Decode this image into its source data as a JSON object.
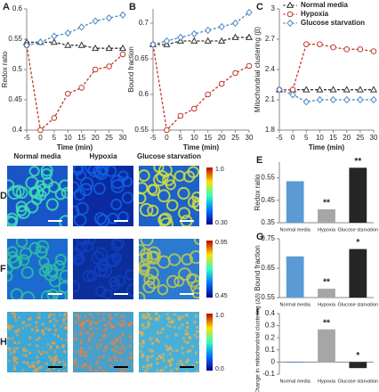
{
  "chart_data": [
    {
      "type": "line",
      "panel": "A",
      "y_label": "Redox ratio",
      "x_label": "Time (min)",
      "x": [
        -5,
        0,
        5,
        10,
        15,
        20,
        25,
        30
      ],
      "xlim": [
        -5,
        30
      ],
      "xticks": [
        -5,
        0,
        5,
        10,
        15,
        20,
        25,
        30
      ],
      "ylim": [
        0.4,
        0.6
      ],
      "yticks": [
        0.4,
        0.45,
        0.5,
        0.55,
        0.6
      ],
      "series": [
        {
          "name": "Normal media",
          "color": "#333333",
          "marker": "triangle",
          "values": [
            0.545,
            0.545,
            0.545,
            0.54,
            0.54,
            0.535,
            0.535,
            0.535
          ]
        },
        {
          "name": "Hypoxia",
          "color": "#c0392b",
          "marker": "circle",
          "values": [
            0.54,
            0.4,
            0.42,
            0.46,
            0.47,
            0.5,
            0.505,
            0.525
          ]
        },
        {
          "name": "Glucose starvation",
          "color": "#4a86c5",
          "marker": "diamond",
          "values": [
            0.54,
            0.545,
            0.555,
            0.56,
            0.57,
            0.58,
            0.585,
            0.59
          ]
        }
      ]
    },
    {
      "type": "line",
      "panel": "B",
      "y_label": "Bound fraction",
      "x_label": "Time (min)",
      "x": [
        -5,
        0,
        5,
        10,
        15,
        20,
        25,
        30
      ],
      "xlim": [
        -5,
        30
      ],
      "xticks": [
        -5,
        0,
        5,
        10,
        15,
        20,
        25,
        30
      ],
      "ylim": [
        0.55,
        0.72
      ],
      "yticks": [
        0.55,
        0.6,
        0.65,
        0.7
      ],
      "series": [
        {
          "name": "Normal media",
          "color": "#333333",
          "marker": "triangle",
          "values": [
            0.67,
            0.67,
            0.675,
            0.675,
            0.675,
            0.675,
            0.68,
            0.68
          ]
        },
        {
          "name": "Hypoxia",
          "color": "#c0392b",
          "marker": "circle",
          "values": [
            0.67,
            0.55,
            0.57,
            0.58,
            0.6,
            0.615,
            0.63,
            0.64
          ]
        },
        {
          "name": "Glucose starvation",
          "color": "#4a86c5",
          "marker": "diamond",
          "values": [
            0.67,
            0.675,
            0.68,
            0.685,
            0.69,
            0.695,
            0.7,
            0.715
          ]
        }
      ]
    },
    {
      "type": "line",
      "panel": "C",
      "y_label": "Mitochondrial clustering (β)",
      "x_label": "Time (min)",
      "x": [
        -5,
        0,
        5,
        10,
        15,
        20,
        25,
        30
      ],
      "xlim": [
        -5,
        30
      ],
      "xticks": [
        -5,
        0,
        5,
        10,
        15,
        20,
        25,
        30
      ],
      "ylim": [
        1.8,
        3
      ],
      "yticks": [
        1.8,
        2.1,
        2.4,
        2.7,
        3
      ],
      "legend": "top-left",
      "series": [
        {
          "name": "Normal media",
          "color": "#333333",
          "marker": "triangle",
          "values": [
            2.2,
            2.2,
            2.2,
            2.2,
            2.2,
            2.2,
            2.2,
            2.2
          ]
        },
        {
          "name": "Hypoxia",
          "color": "#c0392b",
          "marker": "circle",
          "values": [
            2.2,
            2.2,
            2.65,
            2.65,
            2.62,
            2.6,
            2.6,
            2.58
          ]
        },
        {
          "name": "Glucose starvation",
          "color": "#4a86c5",
          "marker": "diamond",
          "values": [
            2.2,
            2.15,
            2.08,
            2.1,
            2.1,
            2.1,
            2.1,
            2.1
          ]
        }
      ]
    },
    {
      "type": "bar",
      "panel": "E",
      "y_label": "Redox ratio",
      "categories": [
        "Normal media",
        "Hypoxia",
        "Glucose starvation"
      ],
      "values": [
        0.535,
        0.41,
        0.595
      ],
      "annotations": [
        null,
        "**",
        "**"
      ],
      "colors": [
        "#5b9bd5",
        "#a6a6a6",
        "#262626"
      ],
      "ylim": [
        0.35,
        0.62
      ],
      "yticks": [
        0.35,
        0.45,
        0.55
      ]
    },
    {
      "type": "bar",
      "panel": "G",
      "y_label": "Bound fraction",
      "categories": [
        "Normal media",
        "Hypoxia",
        "Glucose starvation"
      ],
      "values": [
        0.69,
        0.58,
        0.715
      ],
      "annotations": [
        null,
        "**",
        "*"
      ],
      "colors": [
        "#5b9bd5",
        "#a6a6a6",
        "#262626"
      ],
      "ylim": [
        0.55,
        0.75
      ],
      "yticks": [
        0.55,
        0.65,
        0.75
      ]
    },
    {
      "type": "bar",
      "panel": "I",
      "y_label": "Change in mitochondrial clustering (Δβ)",
      "categories": [
        "Normal media",
        "Hypoxia",
        "Glucose starvation"
      ],
      "values": [
        -0.005,
        0.27,
        -0.05
      ],
      "annotations": [
        null,
        "**",
        "*"
      ],
      "colors": [
        "#5b9bd5",
        "#a6a6a6",
        "#262626"
      ],
      "ylim": [
        -0.1,
        0.4
      ],
      "yticks": [
        -0.1,
        0,
        0.1,
        0.2,
        0.3,
        0.4
      ]
    }
  ],
  "image_panels": {
    "columns": [
      "Normal media",
      "Hypoxia",
      "Glucose starvation"
    ],
    "rows": [
      {
        "panel": "D",
        "colorbar_max": "1.0",
        "colorbar_min": "0.30"
      },
      {
        "panel": "F",
        "colorbar_max": "0.95",
        "colorbar_min": "0.45"
      },
      {
        "panel": "H",
        "colorbar_max": "1.0",
        "colorbar_min": "0.0"
      }
    ]
  }
}
